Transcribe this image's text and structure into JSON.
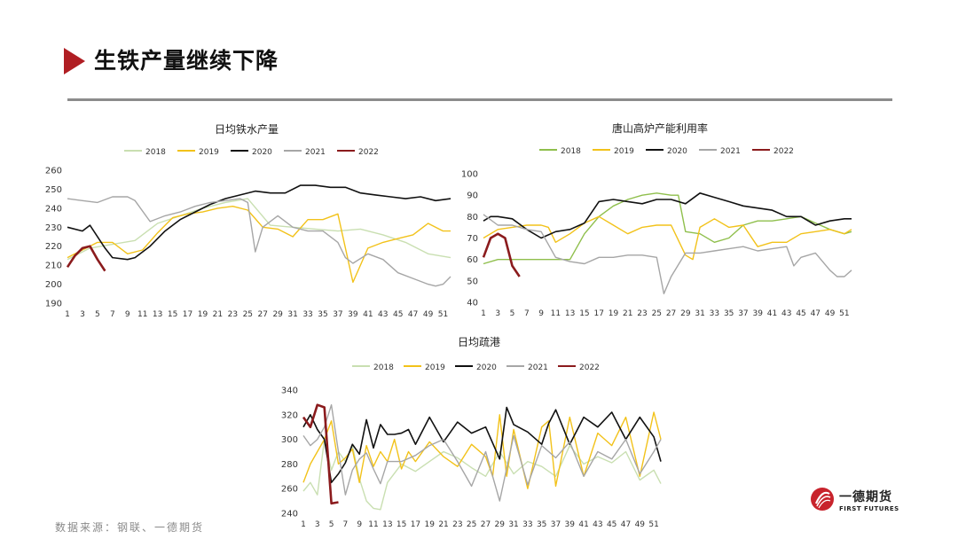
{
  "page": {
    "title": "生铁产量继续下降",
    "source": "数据来源：钢联、一德期货",
    "logo_cn": "一德期货",
    "logo_en": "FIRST FUTURES",
    "accent": "#b01e23"
  },
  "chart_data": [
    {
      "type": "line",
      "title": "日均铁水产量",
      "xlabel": "",
      "ylabel": "",
      "ylim": [
        190,
        260
      ],
      "yticks": [
        190,
        200,
        210,
        220,
        230,
        240,
        250,
        260
      ],
      "xlim": [
        1,
        52
      ],
      "xtick_labels": [
        "1",
        "3",
        "5",
        "7",
        "9",
        "11",
        "13",
        "15",
        "17",
        "19",
        "21",
        "23",
        "25",
        "27",
        "29",
        "31",
        "33",
        "35",
        "37",
        "39",
        "41",
        "43",
        "45",
        "47",
        "49",
        "51"
      ],
      "legend_position": "top",
      "grid": false,
      "series": [
        {
          "name": "2018",
          "color": "#c9dfb1",
          "x": [
            1,
            4,
            7,
            10,
            13,
            16,
            19,
            22,
            25,
            28,
            31,
            34,
            37,
            40,
            43,
            46,
            49,
            52
          ],
          "values": [
            213,
            219,
            221,
            223,
            232,
            236,
            240,
            243,
            245,
            231,
            230,
            229,
            228,
            229,
            226,
            222,
            216,
            214
          ]
        },
        {
          "name": "2019",
          "color": "#f2c21a",
          "x": [
            1,
            3,
            5,
            7,
            9,
            11,
            13,
            15,
            17,
            19,
            21,
            23,
            25,
            27,
            29,
            31,
            33,
            35,
            37,
            39,
            41,
            43,
            45,
            47,
            49,
            51,
            52
          ],
          "values": [
            214,
            218,
            222,
            222,
            216,
            218,
            227,
            235,
            237,
            238,
            240,
            241,
            239,
            230,
            229,
            225,
            234,
            234,
            237,
            201,
            219,
            222,
            224,
            226,
            232,
            228,
            228
          ]
        },
        {
          "name": "2020",
          "color": "#111111",
          "x": [
            1,
            3,
            4,
            6,
            7,
            9,
            10,
            12,
            14,
            16,
            18,
            20,
            22,
            24,
            26,
            28,
            30,
            32,
            34,
            36,
            38,
            40,
            42,
            44,
            46,
            48,
            50,
            52
          ],
          "values": [
            230,
            228,
            231,
            219,
            214,
            213,
            214,
            220,
            228,
            234,
            238,
            242,
            245,
            247,
            249,
            248,
            248,
            252,
            252,
            251,
            251,
            248,
            247,
            246,
            245,
            246,
            244,
            245
          ]
        },
        {
          "name": "2021",
          "color": "#a6a6a6",
          "x": [
            1,
            3,
            5,
            7,
            9,
            10,
            12,
            14,
            16,
            18,
            20,
            22,
            24,
            25,
            26,
            27,
            29,
            31,
            33,
            35,
            37,
            38,
            39,
            41,
            43,
            45,
            47,
            49,
            50,
            51,
            52
          ],
          "values": [
            245,
            244,
            243,
            246,
            246,
            244,
            233,
            236,
            238,
            241,
            243,
            244,
            245,
            243,
            217,
            230,
            236,
            230,
            228,
            228,
            222,
            214,
            211,
            216,
            213,
            206,
            203,
            200,
            199,
            200,
            204
          ]
        },
        {
          "name": "2022",
          "color": "#8b1b1d",
          "x": [
            1,
            2,
            3,
            4,
            5,
            6
          ],
          "values": [
            209,
            215,
            219,
            220,
            213,
            207
          ]
        }
      ]
    },
    {
      "type": "line",
      "title": "唐山高炉产能利用率",
      "xlabel": "",
      "ylabel": "",
      "ylim": [
        40,
        100
      ],
      "yticks": [
        40,
        50,
        60,
        70,
        80,
        90,
        100
      ],
      "xlim": [
        1,
        52
      ],
      "xtick_labels": [
        "1",
        "3",
        "5",
        "7",
        "9",
        "11",
        "13",
        "15",
        "17",
        "19",
        "21",
        "23",
        "25",
        "27",
        "29",
        "31",
        "33",
        "35",
        "37",
        "39",
        "41",
        "43",
        "45",
        "47",
        "49",
        "51"
      ],
      "legend_position": "top",
      "grid": false,
      "series": [
        {
          "name": "2018",
          "color": "#8fbf4c",
          "x": [
            1,
            3,
            5,
            7,
            9,
            11,
            13,
            15,
            17,
            19,
            21,
            23,
            25,
            27,
            28,
            29,
            31,
            33,
            35,
            37,
            39,
            41,
            43,
            45,
            47,
            49,
            51,
            52
          ],
          "values": [
            58,
            60,
            60,
            60,
            60,
            60,
            60,
            72,
            80,
            85,
            88,
            90,
            91,
            90,
            90,
            73,
            72,
            68,
            70,
            76,
            78,
            78,
            79,
            80,
            77,
            74,
            72,
            73
          ]
        },
        {
          "name": "2019",
          "color": "#f2c21a",
          "x": [
            1,
            3,
            5,
            7,
            9,
            10,
            11,
            13,
            15,
            17,
            19,
            21,
            23,
            25,
            27,
            29,
            30,
            31,
            33,
            35,
            37,
            39,
            41,
            43,
            45,
            47,
            49,
            51,
            52
          ],
          "values": [
            70,
            74,
            75,
            76,
            76,
            75,
            68,
            72,
            77,
            80,
            76,
            72,
            75,
            76,
            76,
            62,
            60,
            75,
            79,
            75,
            76,
            66,
            68,
            68,
            72,
            73,
            74,
            72,
            74
          ]
        },
        {
          "name": "2020",
          "color": "#111111",
          "x": [
            1,
            2,
            3,
            5,
            7,
            9,
            11,
            13,
            15,
            17,
            19,
            21,
            23,
            25,
            27,
            29,
            31,
            33,
            35,
            37,
            39,
            41,
            43,
            45,
            47,
            49,
            51,
            52
          ],
          "values": [
            78,
            80,
            80,
            79,
            74,
            70,
            73,
            74,
            77,
            87,
            88,
            87,
            86,
            88,
            88,
            86,
            91,
            89,
            87,
            85,
            84,
            83,
            80,
            80,
            76,
            78,
            79,
            79
          ]
        },
        {
          "name": "2021",
          "color": "#a6a6a6",
          "x": [
            1,
            3,
            5,
            7,
            9,
            11,
            13,
            15,
            17,
            19,
            21,
            23,
            25,
            26,
            27,
            29,
            31,
            33,
            35,
            37,
            39,
            41,
            43,
            44,
            45,
            47,
            49,
            50,
            51,
            52
          ],
          "values": [
            81,
            76,
            76,
            74,
            73,
            61,
            59,
            58,
            61,
            61,
            62,
            62,
            61,
            44,
            52,
            63,
            63,
            64,
            65,
            66,
            64,
            65,
            66,
            57,
            61,
            63,
            55,
            52,
            52,
            55
          ]
        },
        {
          "name": "2022",
          "color": "#8b1b1d",
          "x": [
            1,
            2,
            3,
            4,
            5,
            6
          ],
          "values": [
            61,
            70,
            72,
            70,
            57,
            52
          ]
        }
      ]
    },
    {
      "type": "line",
      "title": "日均疏港",
      "xlabel": "",
      "ylabel": "",
      "ylim": [
        240,
        340
      ],
      "yticks": [
        240,
        260,
        280,
        300,
        320,
        340
      ],
      "xlim": [
        1,
        52
      ],
      "xtick_labels": [
        "1",
        "3",
        "5",
        "7",
        "9",
        "11",
        "13",
        "15",
        "17",
        "19",
        "21",
        "23",
        "25",
        "27",
        "29",
        "31",
        "33",
        "35",
        "37",
        "39",
        "41",
        "43",
        "45",
        "47",
        "49",
        "51"
      ],
      "legend_position": "top",
      "grid": false,
      "series": [
        {
          "name": "2018",
          "color": "#c9dfb1",
          "x": [
            1,
            2,
            3,
            4,
            5,
            6,
            7,
            8,
            9,
            10,
            11,
            12,
            13,
            15,
            17,
            19,
            21,
            23,
            25,
            27,
            29,
            31,
            33,
            35,
            37,
            39,
            41,
            43,
            45,
            47,
            49,
            51,
            52
          ],
          "values": [
            258,
            265,
            255,
            300,
            275,
            290,
            282,
            295,
            268,
            250,
            244,
            243,
            265,
            280,
            274,
            282,
            290,
            285,
            277,
            270,
            290,
            272,
            282,
            278,
            270,
            295,
            280,
            286,
            281,
            290,
            267,
            275,
            264
          ]
        },
        {
          "name": "2019",
          "color": "#f2c21a",
          "x": [
            1,
            2,
            3,
            4,
            5,
            6,
            7,
            8,
            9,
            10,
            11,
            12,
            13,
            14,
            15,
            16,
            17,
            19,
            21,
            23,
            25,
            27,
            28,
            29,
            30,
            31,
            33,
            35,
            36,
            37,
            39,
            41,
            43,
            45,
            47,
            49,
            51,
            52
          ],
          "values": [
            265,
            280,
            290,
            300,
            315,
            280,
            285,
            292,
            265,
            295,
            278,
            290,
            282,
            300,
            276,
            290,
            282,
            298,
            286,
            278,
            296,
            286,
            270,
            320,
            270,
            308,
            260,
            310,
            315,
            262,
            318,
            270,
            305,
            295,
            318,
            270,
            322,
            300
          ]
        },
        {
          "name": "2020",
          "color": "#111111",
          "x": [
            1,
            2,
            3,
            4,
            5,
            6,
            7,
            8,
            9,
            10,
            11,
            12,
            13,
            14,
            15,
            16,
            17,
            19,
            21,
            23,
            25,
            27,
            29,
            30,
            31,
            33,
            35,
            36,
            37,
            39,
            41,
            43,
            45,
            47,
            49,
            51,
            52
          ],
          "values": [
            310,
            320,
            308,
            300,
            265,
            272,
            281,
            296,
            288,
            316,
            293,
            312,
            304,
            304,
            305,
            308,
            296,
            318,
            298,
            314,
            305,
            310,
            284,
            326,
            312,
            306,
            296,
            313,
            324,
            296,
            318,
            310,
            322,
            300,
            318,
            302,
            282
          ]
        },
        {
          "name": "2021",
          "color": "#a6a6a6",
          "x": [
            1,
            2,
            3,
            4,
            5,
            6,
            7,
            8,
            9,
            10,
            11,
            12,
            13,
            15,
            17,
            19,
            21,
            23,
            25,
            27,
            29,
            31,
            33,
            35,
            37,
            39,
            41,
            43,
            45,
            47,
            49,
            51,
            52
          ],
          "values": [
            303,
            295,
            300,
            310,
            328,
            290,
            255,
            275,
            284,
            289,
            276,
            264,
            282,
            282,
            287,
            295,
            300,
            282,
            262,
            290,
            250,
            303,
            263,
            295,
            285,
            298,
            270,
            290,
            284,
            300,
            272,
            290,
            300
          ]
        },
        {
          "name": "2022",
          "color": "#8b1b1d",
          "x": [
            1,
            2,
            3,
            4,
            5,
            6
          ],
          "values": [
            318,
            310,
            328,
            326,
            248,
            249
          ]
        }
      ]
    }
  ]
}
